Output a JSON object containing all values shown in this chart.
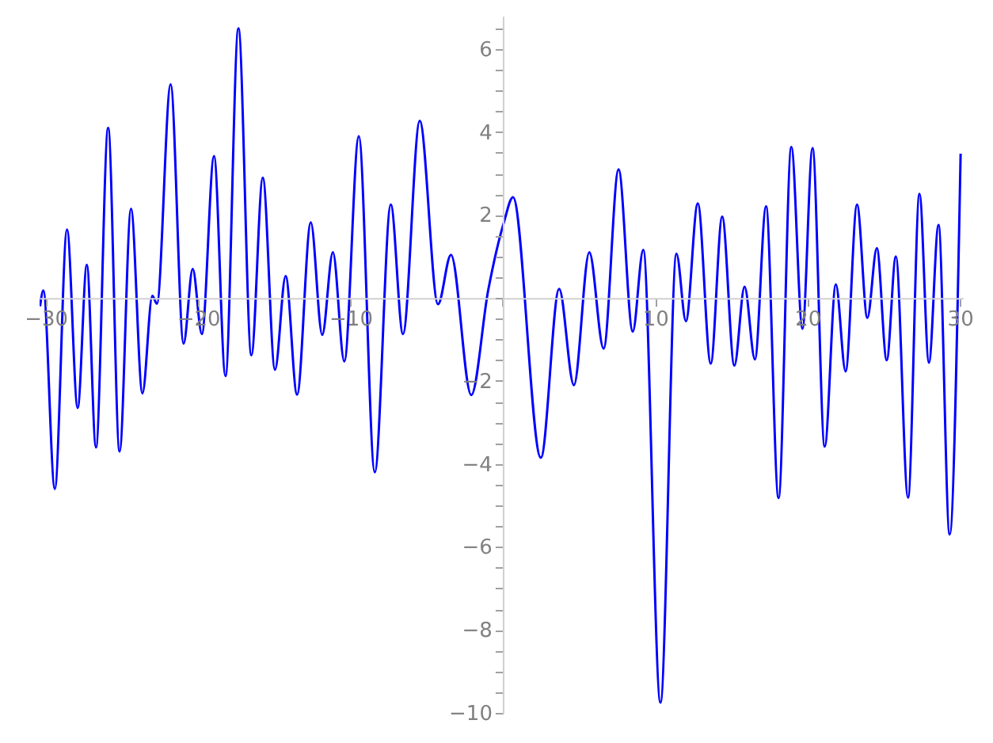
{
  "chart_data": {
    "type": "line",
    "x": [
      -30.37,
      -30.15,
      -29.4,
      -28.6,
      -27.9,
      -27.3,
      -26.7,
      -25.9,
      -25.15,
      -24.4,
      -23.65,
      -23.0,
      -22.7,
      -21.8,
      -20.95,
      -20.35,
      -19.75,
      -18.95,
      -18.2,
      -17.35,
      -16.5,
      -15.75,
      -14.95,
      -14.25,
      -13.5,
      -12.6,
      -11.85,
      -11.15,
      -10.4,
      -9.45,
      -8.4,
      -7.35,
      -6.55,
      -5.45,
      -4.25,
      -3.4,
      -2.07,
      -0.96,
      0.08,
      0.67,
      2.5,
      3.7,
      4.67,
      5.68,
      6.62,
      7.6,
      8.53,
      9.22,
      10.35,
      11.4,
      12.02,
      12.8,
      13.65,
      14.4,
      15.2,
      15.87,
      16.55,
      17.28,
      18.1,
      18.94,
      19.67,
      20.33,
      21.13,
      21.86,
      22.5,
      23.25,
      23.93,
      24.55,
      25.2,
      25.8,
      26.6,
      27.35,
      27.97,
      28.6,
      29.33,
      30.05
    ],
    "values": [
      -0.2,
      0.18,
      -4.6,
      1.65,
      -2.65,
      0.8,
      -3.6,
      4.1,
      -3.7,
      2.15,
      -2.3,
      0.05,
      -0.14,
      5.15,
      -1.1,
      0.7,
      -0.87,
      3.42,
      -1.88,
      6.5,
      -1.38,
      2.9,
      -1.73,
      0.53,
      -2.33,
      1.82,
      -0.89,
      1.1,
      -1.53,
      3.9,
      -4.2,
      2.25,
      -0.87,
      4.27,
      -0.15,
      1.04,
      -2.34,
      0.18,
      1.83,
      2.43,
      -3.85,
      0.22,
      -2.1,
      1.1,
      -1.22,
      3.1,
      -0.81,
      1.16,
      -9.75,
      1.07,
      -0.56,
      2.28,
      -1.58,
      1.96,
      -1.63,
      0.27,
      -1.48,
      2.21,
      -4.82,
      3.64,
      -0.74,
      3.61,
      -3.58,
      0.33,
      -1.77,
      2.25,
      -0.48,
      1.2,
      -1.5,
      1.0,
      -4.81,
      2.51,
      -1.56,
      1.76,
      -5.7,
      3.48
    ],
    "color": "#0000ff",
    "xlim": [
      -30.4,
      30.2
    ],
    "ylim": [
      -10,
      6.8
    ],
    "xticks": [
      {
        "value": -30,
        "label": "−30"
      },
      {
        "value": -20,
        "label": "−20"
      },
      {
        "value": -10,
        "label": "−10"
      },
      {
        "value": 0,
        "label": null
      },
      10,
      20,
      30
    ],
    "yticks": [
      {
        "value": -10,
        "label": "−10"
      },
      {
        "value": -9.5,
        "label": null
      },
      {
        "value": -9,
        "label": null
      },
      {
        "value": -8.5,
        "label": null
      },
      {
        "value": -8,
        "label": "−8"
      },
      {
        "value": -7.5,
        "label": null
      },
      {
        "value": -7,
        "label": null
      },
      {
        "value": -6.5,
        "label": null
      },
      {
        "value": -6,
        "label": "−6"
      },
      {
        "value": -5.5,
        "label": null
      },
      {
        "value": -5,
        "label": null
      },
      {
        "value": -4.5,
        "label": null
      },
      {
        "value": -4,
        "label": "−4"
      },
      {
        "value": -3.5,
        "label": null
      },
      {
        "value": -3,
        "label": null
      },
      {
        "value": -2.5,
        "label": null
      },
      {
        "value": -2,
        "label": "−2"
      },
      {
        "value": -1.5,
        "label": null
      },
      {
        "value": -1,
        "label": null
      },
      {
        "value": -0.5,
        "label": null
      },
      {
        "value": 0,
        "label": null
      },
      {
        "value": 0.5,
        "label": null
      },
      {
        "value": 1,
        "label": null
      },
      {
        "value": 1.5,
        "label": null
      },
      2,
      {
        "value": 2.5,
        "label": null
      },
      {
        "value": 3,
        "label": null
      },
      {
        "value": 3.5,
        "label": null
      },
      4,
      {
        "value": 4.5,
        "label": null
      },
      {
        "value": 5,
        "label": null
      },
      {
        "value": 5.5,
        "label": null
      },
      6,
      {
        "value": 6.5,
        "label": null
      }
    ]
  }
}
